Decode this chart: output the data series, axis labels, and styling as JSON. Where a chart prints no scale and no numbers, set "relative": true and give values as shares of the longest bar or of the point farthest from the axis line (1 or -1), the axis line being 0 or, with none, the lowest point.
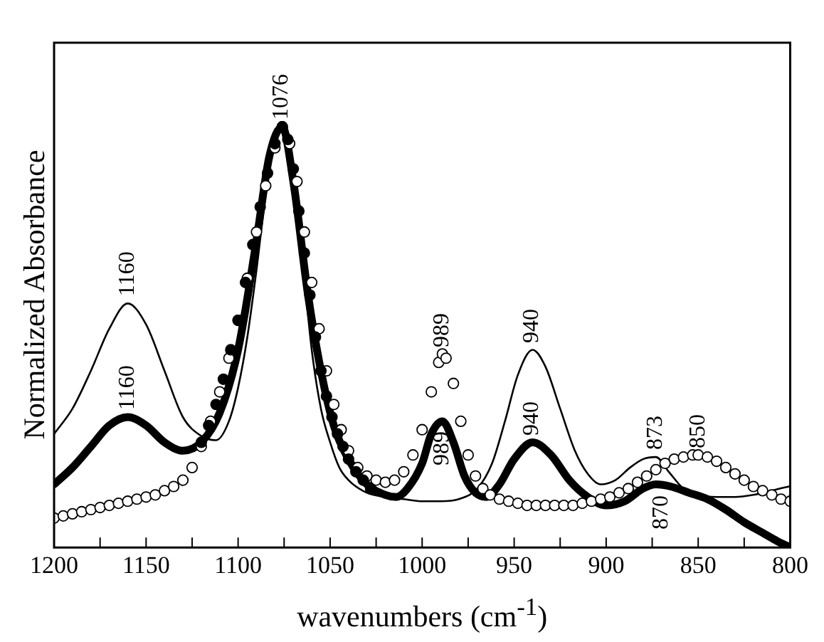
{
  "chart_data": {
    "type": "line",
    "relative": true,
    "xlabel": "wavenumbers (cm$^{-1}$)",
    "ylabel": "Normalized Absorbance",
    "xlim": [
      1200,
      800
    ],
    "xticks": [
      1200,
      {
        "value": 1175,
        "label": null
      },
      1150,
      {
        "value": 1125,
        "label": null
      },
      1100,
      {
        "value": 1075,
        "label": null
      },
      1050,
      {
        "value": 1025,
        "label": null
      },
      1000,
      {
        "value": 975,
        "label": null
      },
      950,
      {
        "value": 925,
        "label": null
      },
      900,
      {
        "value": 875,
        "label": null
      },
      850,
      {
        "value": 825,
        "label": null
      },
      800
    ],
    "grid": false,
    "legend": false,
    "series": [
      {
        "color": "#000000",
        "marker": "none",
        "line_style": "solid",
        "x": [
          1200,
          1190,
          1180,
          1170,
          1160,
          1150,
          1140,
          1130,
          1120,
          1112,
          1105,
          1100,
          1095,
          1090,
          1085,
          1080,
          1076,
          1072,
          1068,
          1064,
          1060,
          1055,
          1050,
          1045,
          1040,
          1030,
          1020,
          1010,
          1000,
          990,
          980,
          970,
          962,
          955,
          948,
          940,
          933,
          925,
          917,
          910,
          903,
          895,
          887,
          880,
          873,
          866,
          858,
          850,
          840,
          830,
          820,
          810,
          800
        ],
        "values": [
          0.27,
          0.33,
          0.42,
          0.52,
          0.58,
          0.53,
          0.42,
          0.31,
          0.265,
          0.255,
          0.3,
          0.38,
          0.5,
          0.66,
          0.84,
          0.97,
          1.0,
          0.95,
          0.82,
          0.64,
          0.47,
          0.33,
          0.25,
          0.19,
          0.16,
          0.13,
          0.12,
          0.115,
          0.11,
          0.11,
          0.115,
          0.14,
          0.2,
          0.3,
          0.41,
          0.47,
          0.43,
          0.33,
          0.23,
          0.175,
          0.15,
          0.16,
          0.19,
          0.21,
          0.215,
          0.18,
          0.14,
          0.125,
          0.12,
          0.12,
          0.125,
          0.135,
          0.146
        ]
      },
      {
        "color": "#000000",
        "marker": "none",
        "line_style": "solid",
        "x": [
          1200,
          1190,
          1180,
          1170,
          1160,
          1150,
          1140,
          1130,
          1120,
          1110,
          1100,
          1090,
          1083,
          1076,
          1070,
          1062,
          1055,
          1048,
          1040,
          1030,
          1020,
          1014,
          1008,
          1000,
          995,
          989,
          983,
          977,
          971,
          965,
          958,
          950,
          940,
          930,
          920,
          910,
          900,
          890,
          880,
          873,
          865,
          855,
          845,
          835,
          825,
          815,
          807,
          800
        ],
        "values": [
          0.15,
          0.19,
          0.24,
          0.29,
          0.31,
          0.29,
          0.25,
          0.23,
          0.25,
          0.32,
          0.47,
          0.73,
          0.93,
          1.0,
          0.87,
          0.6,
          0.42,
          0.29,
          0.21,
          0.15,
          0.125,
          0.12,
          0.14,
          0.2,
          0.27,
          0.3,
          0.25,
          0.17,
          0.13,
          0.12,
          0.15,
          0.21,
          0.25,
          0.22,
          0.16,
          0.12,
          0.1,
          0.11,
          0.14,
          0.15,
          0.145,
          0.13,
          0.115,
          0.09,
          0.06,
          0.035,
          0.015,
          0
        ]
      },
      {
        "type": "scatter",
        "color": "#000000",
        "marker": "circle",
        "x": [
          1200,
          1195,
          1190,
          1185,
          1180,
          1175,
          1170,
          1165,
          1160,
          1155,
          1150,
          1145,
          1140,
          1135,
          1130,
          1125,
          1120,
          1115,
          1110,
          1105,
          1100,
          1095,
          1090,
          1085,
          1080,
          1076,
          1072,
          1068,
          1064,
          1060,
          1056,
          1052,
          1048,
          1044,
          1040,
          1035,
          1030,
          1025,
          1020,
          1015,
          1010,
          1005,
          1000,
          995,
          991,
          989,
          987,
          983,
          979,
          975,
          971,
          967,
          963,
          958,
          953,
          948,
          943,
          938,
          933,
          928,
          923,
          918,
          913,
          908,
          903,
          898,
          893,
          888,
          883,
          878,
          873,
          868,
          863,
          858,
          853,
          850,
          845,
          840,
          835,
          830,
          825,
          820,
          815,
          810,
          805,
          800
        ],
        "values": [
          0.07,
          0.075,
          0.08,
          0.085,
          0.09,
          0.095,
          0.1,
          0.105,
          0.11,
          0.115,
          0.12,
          0.125,
          0.135,
          0.145,
          0.16,
          0.19,
          0.24,
          0.3,
          0.37,
          0.45,
          0.54,
          0.64,
          0.75,
          0.86,
          0.95,
          1.0,
          0.96,
          0.87,
          0.75,
          0.63,
          0.52,
          0.42,
          0.34,
          0.28,
          0.23,
          0.19,
          0.17,
          0.16,
          0.155,
          0.16,
          0.18,
          0.22,
          0.28,
          0.37,
          0.44,
          0.46,
          0.45,
          0.39,
          0.3,
          0.22,
          0.17,
          0.14,
          0.125,
          0.115,
          0.11,
          0.105,
          0.1,
          0.1,
          0.1,
          0.1,
          0.1,
          0.1,
          0.105,
          0.11,
          0.115,
          0.12,
          0.13,
          0.14,
          0.155,
          0.17,
          0.185,
          0.2,
          0.21,
          0.215,
          0.22,
          0.22,
          0.215,
          0.205,
          0.19,
          0.175,
          0.16,
          0.145,
          0.135,
          0.125,
          0.115,
          0.11
        ]
      },
      {
        "type": "scatter",
        "color": "#000000",
        "marker": "circle",
        "x": [
          1120,
          1116,
          1112,
          1108,
          1104,
          1100,
          1096,
          1092,
          1088,
          1084,
          1080,
          1076,
          1073,
          1070,
          1067,
          1064,
          1061,
          1058,
          1055,
          1052,
          1049,
          1046,
          1043,
          1040,
          1036,
          1032,
          1028
        ],
        "values": [
          0.25,
          0.29,
          0.34,
          0.4,
          0.47,
          0.54,
          0.63,
          0.72,
          0.81,
          0.89,
          0.96,
          1.0,
          0.97,
          0.9,
          0.8,
          0.7,
          0.6,
          0.5,
          0.42,
          0.36,
          0.31,
          0.27,
          0.24,
          0.21,
          0.18,
          0.16,
          0.14
        ]
      }
    ],
    "annotations": [
      {
        "text": "1076",
        "x": 1076,
        "y": 1.0
      },
      {
        "text": "1160",
        "x": 1160,
        "y": 0.58
      },
      {
        "text": "1160",
        "x": 1160,
        "y": 0.31
      },
      {
        "text": "989",
        "x": 989,
        "y": 0.46
      },
      {
        "text": "989",
        "x": 989,
        "y": 0.3
      },
      {
        "text": "940",
        "x": 940,
        "y": 0.47
      },
      {
        "text": "940",
        "x": 940,
        "y": 0.25
      },
      {
        "text": "873",
        "x": 873,
        "y": 0.215
      },
      {
        "text": "850",
        "x": 850,
        "y": 0.22
      },
      {
        "text": "870",
        "x": 870,
        "y": 0.15
      }
    ]
  }
}
